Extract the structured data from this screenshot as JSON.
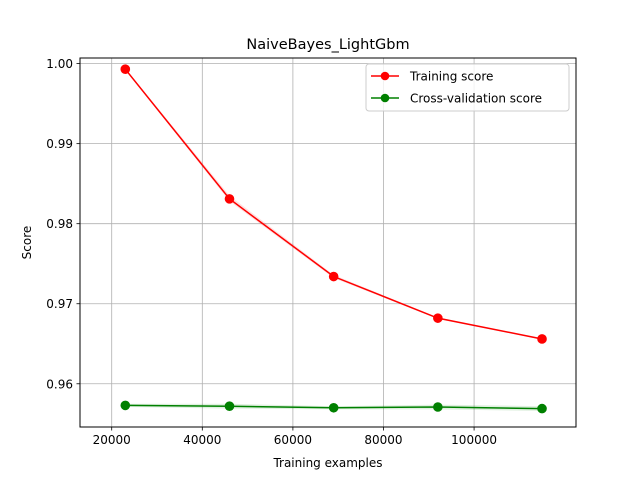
{
  "chart_data": {
    "type": "line",
    "title": "NaiveBayes_LightGbm",
    "xlabel": "Training examples",
    "ylabel": "Score",
    "xlim": [
      13000,
      122500
    ],
    "ylim": [
      0.9546,
      1.0007
    ],
    "xticks": [
      20000,
      40000,
      60000,
      80000,
      100000
    ],
    "xtick_labels": [
      "20000",
      "40000",
      "60000",
      "80000",
      "100000"
    ],
    "yticks": [
      0.96,
      0.97,
      0.98,
      0.99,
      1.0
    ],
    "ytick_labels": [
      "0.96",
      "0.97",
      "0.98",
      "0.99",
      "1.00"
    ],
    "grid": true,
    "legend_position": "top-right",
    "x": [
      23000,
      46000,
      69000,
      92000,
      115000
    ],
    "series": [
      {
        "name": "Training score",
        "color": "#ff0000",
        "band_color": "#ff0000",
        "values": [
          0.9993,
          0.9831,
          0.9734,
          0.9682,
          0.9656
        ],
        "band_lower": [
          0.9992,
          0.9828,
          0.9732,
          0.9681,
          0.9655
        ],
        "band_upper": [
          0.9994,
          0.9835,
          0.9736,
          0.9683,
          0.9657
        ]
      },
      {
        "name": "Cross-validation score",
        "color": "#008000",
        "band_color": "#008000",
        "values": [
          0.9573,
          0.9572,
          0.957,
          0.9571,
          0.9569
        ],
        "band_lower": [
          0.9571,
          0.9569,
          0.9568,
          0.9568,
          0.9566
        ],
        "band_upper": [
          0.9575,
          0.9575,
          0.9572,
          0.9574,
          0.9572
        ]
      }
    ]
  }
}
